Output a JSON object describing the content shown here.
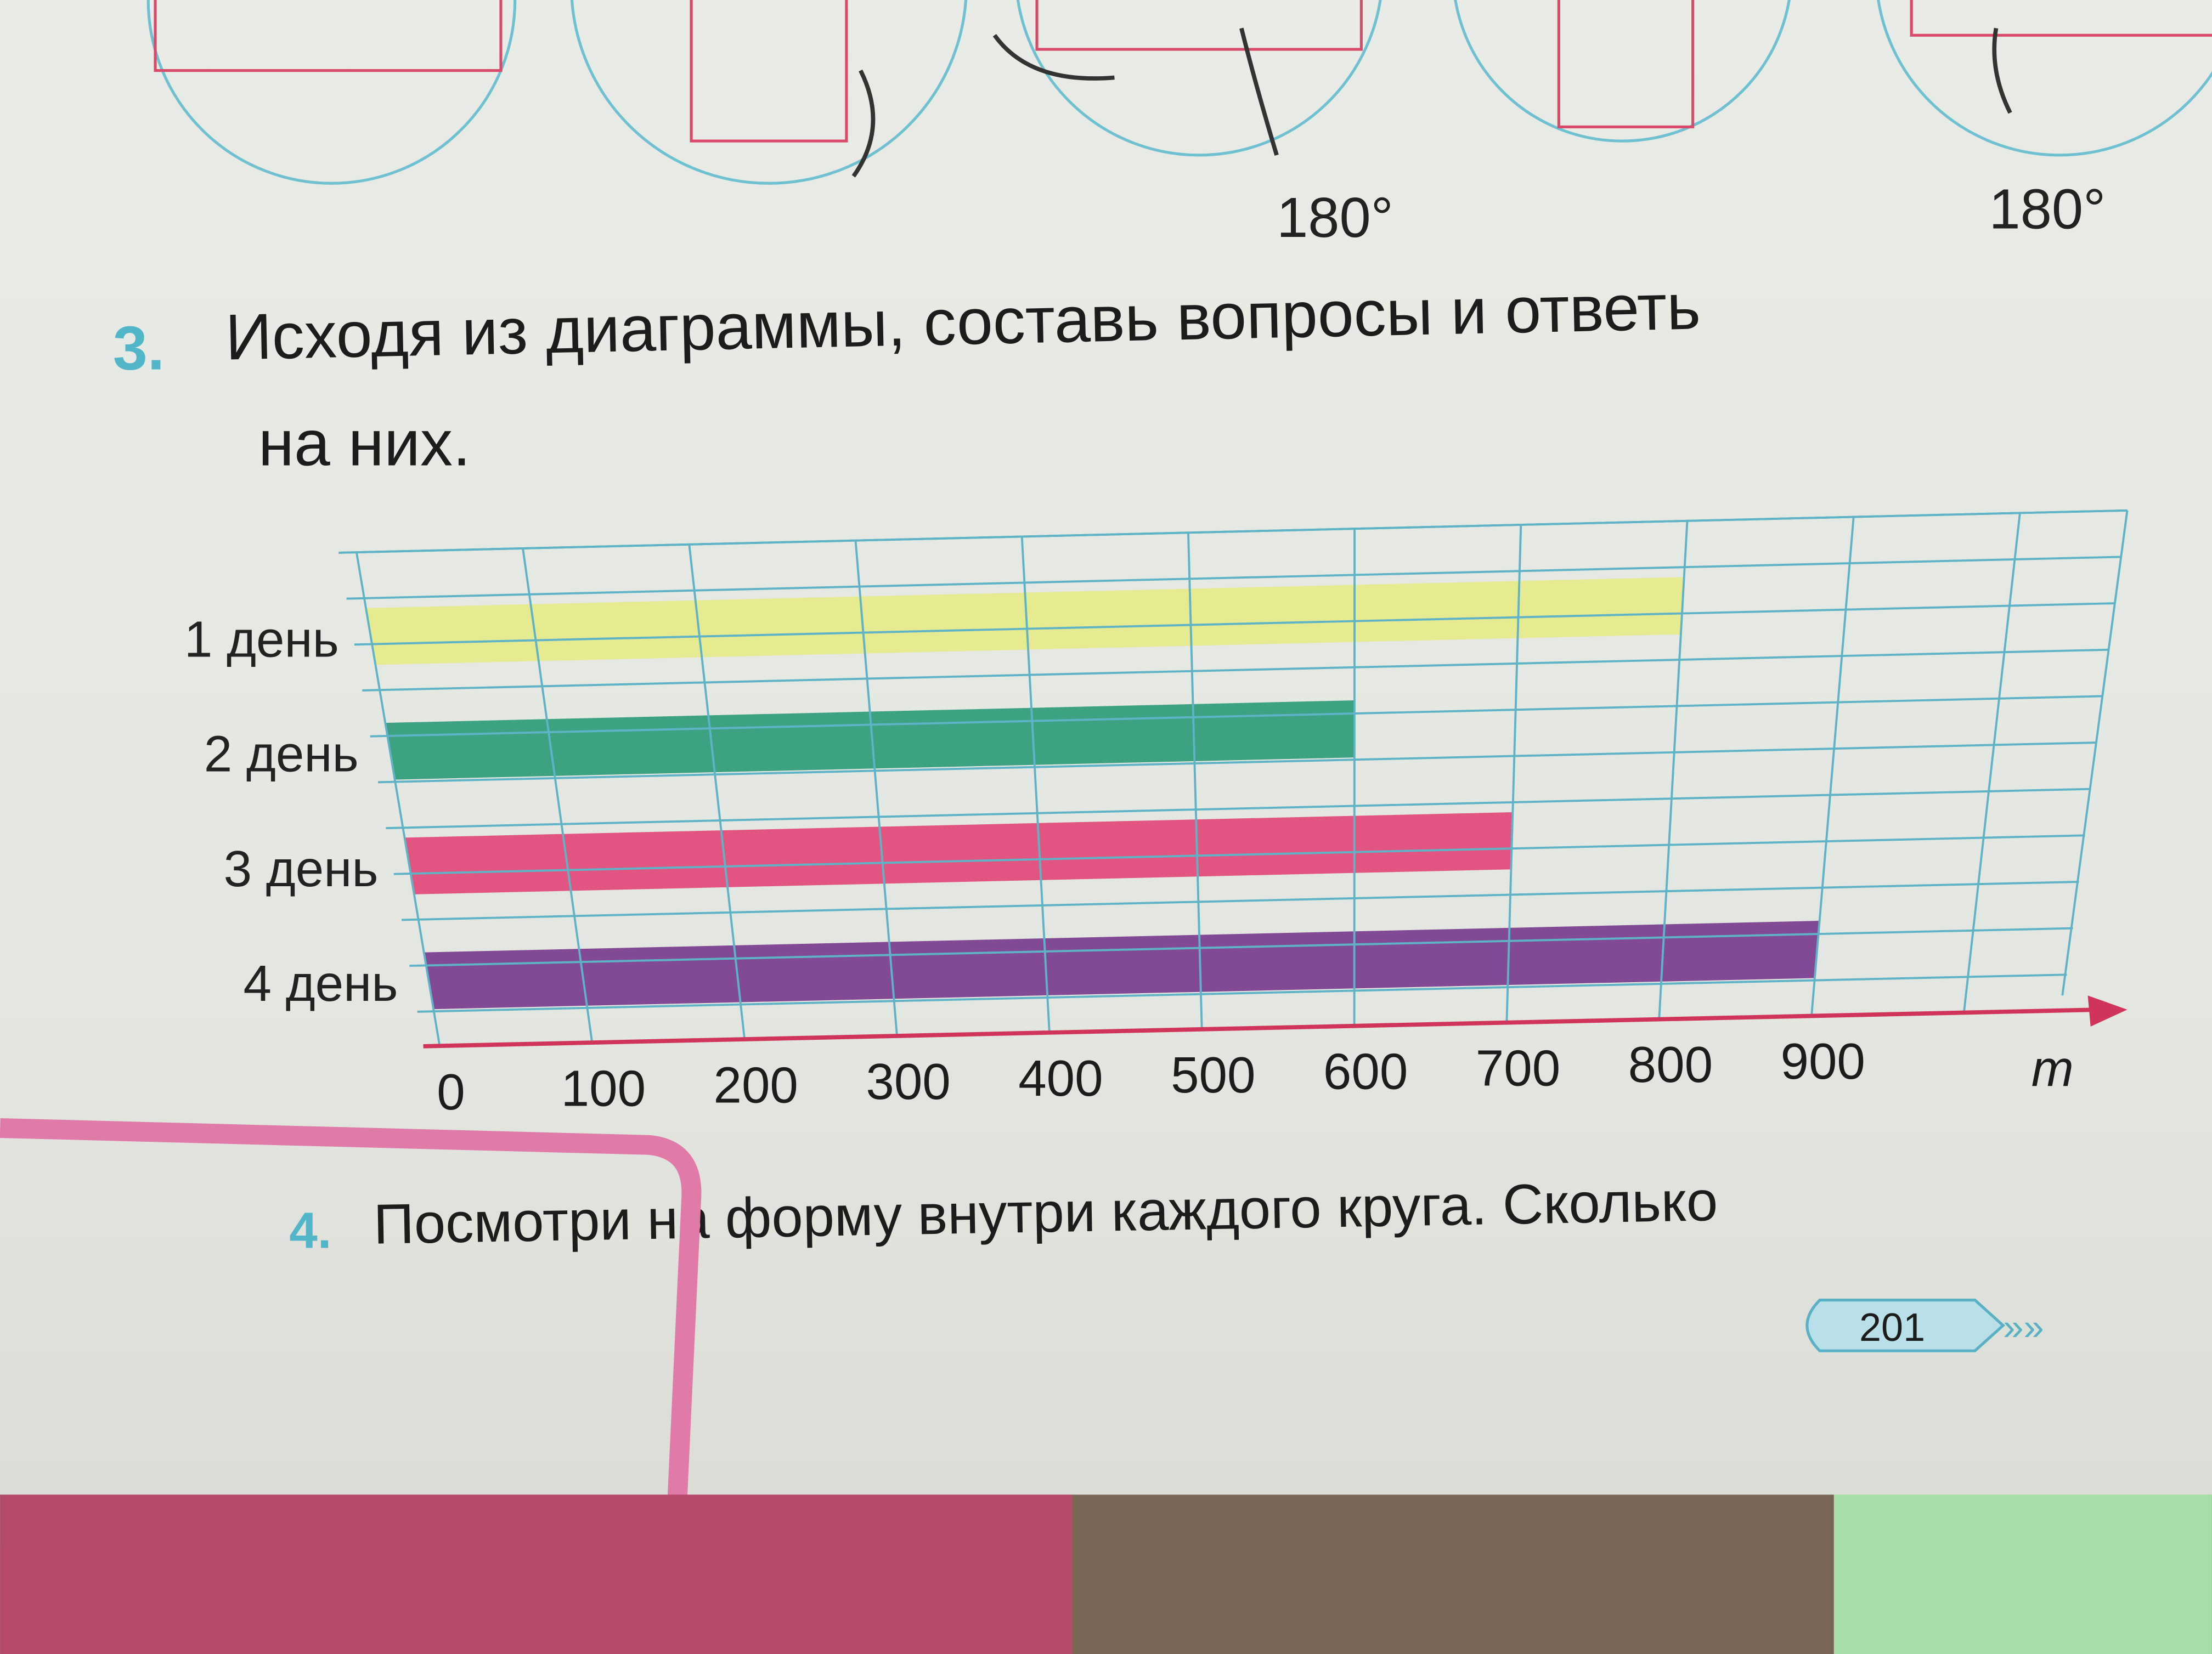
{
  "top_figures": {
    "angle_label_1": "180°",
    "angle_label_2": "180°"
  },
  "task3": {
    "number": "3.",
    "text_line1": "Исходя из диаграммы, составь вопросы и ответь",
    "text_line2": "на них."
  },
  "task4": {
    "number": "4.",
    "text": "Посмотри на форму внутри каждого круга.  Сколько"
  },
  "page_number": "201",
  "chart_data": {
    "type": "bar",
    "orientation": "horizontal",
    "categories": [
      "1 день",
      "2 день",
      "3 день",
      "4 день"
    ],
    "values": [
      800,
      600,
      700,
      900
    ],
    "colors": [
      "#e6e98a",
      "#2e9c78",
      "#e2487a",
      "#7a3c8e"
    ],
    "x_ticks": [
      "0",
      "100",
      "200",
      "300",
      "400",
      "500",
      "600",
      "700",
      "800",
      "900"
    ],
    "xlabel": "m",
    "xlim": [
      0,
      1000
    ],
    "grid": true,
    "grid_color": "#5fb3c6",
    "axis_color": "#d0345a"
  }
}
